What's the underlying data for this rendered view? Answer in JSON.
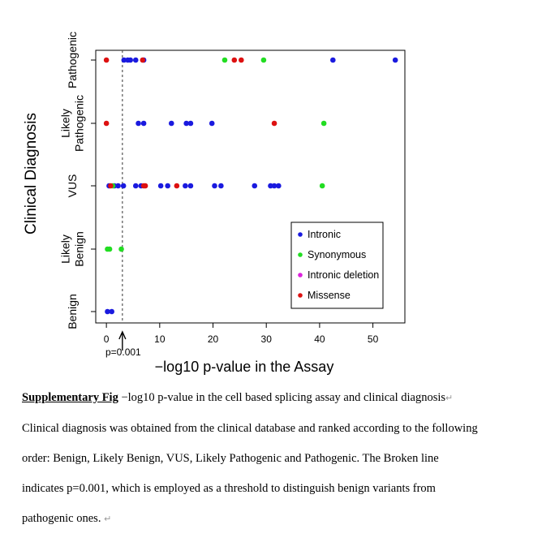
{
  "chart_data": {
    "type": "scatter",
    "xlabel": "−log10 p-value in the Assay",
    "ylabel": "Clinical Diagnosis",
    "xlim": [
      -2,
      56
    ],
    "x_ticks": [
      "0",
      "10",
      "20",
      "30",
      "40",
      "50"
    ],
    "x_tick_values": [
      0,
      10,
      20,
      30,
      40,
      50
    ],
    "categories": [
      "Benign",
      "Likely Benign",
      "VUS",
      "Likely Pathogenic",
      "Pathogenic"
    ],
    "category_labels": [
      [
        "Benign"
      ],
      [
        "Likely",
        "Benign"
      ],
      [
        "VUS"
      ],
      [
        "Likely",
        "Pathogenic"
      ],
      [
        "Pathogenic"
      ]
    ],
    "threshold": {
      "x": 3,
      "label": "p=0.001",
      "style": "dashed"
    },
    "legend_position": "bottom-right",
    "series": [
      {
        "name": "Intronic",
        "color": "#1a1adf",
        "points": [
          {
            "x": 0.2,
            "category": "Benign"
          },
          {
            "x": 1.0,
            "category": "Benign"
          },
          {
            "x": 0.5,
            "category": "VUS"
          },
          {
            "x": 1.5,
            "category": "VUS"
          },
          {
            "x": 2.2,
            "category": "VUS"
          },
          {
            "x": 3.2,
            "category": "VUS"
          },
          {
            "x": 5.5,
            "category": "VUS"
          },
          {
            "x": 6.5,
            "category": "VUS"
          },
          {
            "x": 10.2,
            "category": "VUS"
          },
          {
            "x": 11.5,
            "category": "VUS"
          },
          {
            "x": 14.8,
            "category": "VUS"
          },
          {
            "x": 15.8,
            "category": "VUS"
          },
          {
            "x": 20.3,
            "category": "VUS"
          },
          {
            "x": 21.5,
            "category": "VUS"
          },
          {
            "x": 27.8,
            "category": "VUS"
          },
          {
            "x": 30.8,
            "category": "VUS"
          },
          {
            "x": 31.5,
            "category": "VUS"
          },
          {
            "x": 32.3,
            "category": "VUS"
          },
          {
            "x": 6.0,
            "category": "Likely Pathogenic"
          },
          {
            "x": 7.0,
            "category": "Likely Pathogenic"
          },
          {
            "x": 12.2,
            "category": "Likely Pathogenic"
          },
          {
            "x": 15.0,
            "category": "Likely Pathogenic"
          },
          {
            "x": 15.8,
            "category": "Likely Pathogenic"
          },
          {
            "x": 19.8,
            "category": "Likely Pathogenic"
          },
          {
            "x": 3.3,
            "category": "Pathogenic"
          },
          {
            "x": 4.0,
            "category": "Pathogenic"
          },
          {
            "x": 4.5,
            "category": "Pathogenic"
          },
          {
            "x": 5.5,
            "category": "Pathogenic"
          },
          {
            "x": 7.0,
            "category": "Pathogenic"
          },
          {
            "x": 42.5,
            "category": "Pathogenic"
          },
          {
            "x": 54.2,
            "category": "Pathogenic"
          }
        ]
      },
      {
        "name": "Synonymous",
        "color": "#22dd22",
        "points": [
          {
            "x": 0.2,
            "category": "Likely Benign"
          },
          {
            "x": 0.6,
            "category": "Likely Benign"
          },
          {
            "x": 2.8,
            "category": "Likely Benign"
          },
          {
            "x": 1.2,
            "category": "VUS"
          },
          {
            "x": 40.5,
            "category": "VUS"
          },
          {
            "x": 40.8,
            "category": "Likely Pathogenic"
          },
          {
            "x": 22.2,
            "category": "Pathogenic"
          },
          {
            "x": 29.5,
            "category": "Pathogenic"
          }
        ]
      },
      {
        "name": "Intronic deletion",
        "color": "#dd22dd",
        "points": []
      },
      {
        "name": "Missense",
        "color": "#dd1111",
        "points": [
          {
            "x": 0.0,
            "category": "Pathogenic"
          },
          {
            "x": 6.8,
            "category": "Pathogenic"
          },
          {
            "x": 24.0,
            "category": "Pathogenic"
          },
          {
            "x": 25.3,
            "category": "Pathogenic"
          },
          {
            "x": 0.0,
            "category": "Likely Pathogenic"
          },
          {
            "x": 31.5,
            "category": "Likely Pathogenic"
          },
          {
            "x": 0.8,
            "category": "VUS"
          },
          {
            "x": 7.0,
            "category": "VUS"
          },
          {
            "x": 7.3,
            "category": "VUS"
          },
          {
            "x": 13.2,
            "category": "VUS"
          }
        ]
      }
    ]
  },
  "caption": {
    "fig_label": "Supplementary Fig",
    "line1_rest": " −log10 p-value in the cell based splicing assay and clinical diagnosis",
    "line2": "Clinical diagnosis was obtained from the clinical database and ranked according to the following",
    "line3": "order: Benign, Likely Benign, VUS, Likely Pathogenic and Pathogenic. The Broken line",
    "line4": "indicates p=0.001, which is employed as a threshold to distinguish benign variants from",
    "line5": "pathogenic ones."
  }
}
